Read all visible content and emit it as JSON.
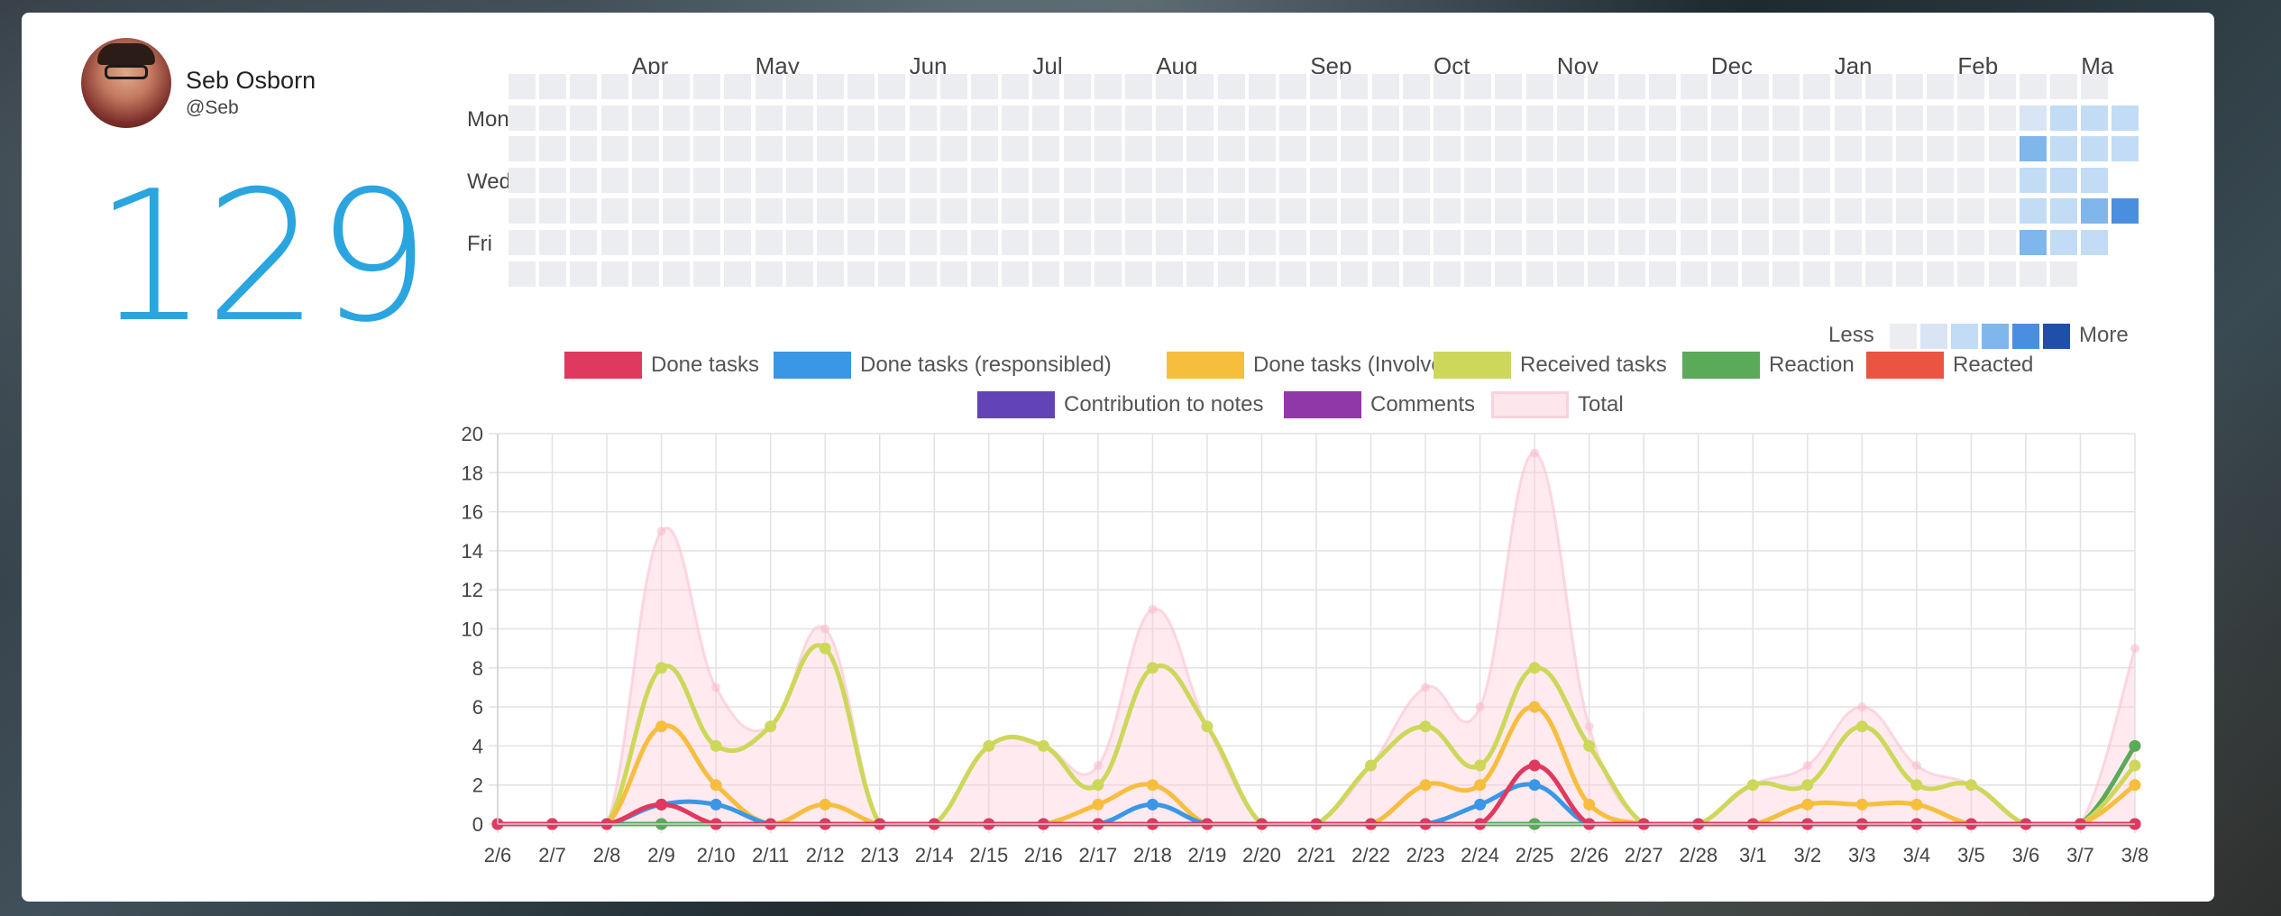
{
  "profile": {
    "name": "Seb Osborn",
    "handle": "@Seb",
    "count": "129"
  },
  "heatmap": {
    "months": [
      "Apr",
      "May",
      "Jun",
      "Jul",
      "Aug",
      "Sep",
      "Oct",
      "Nov",
      "Dec",
      "Jan",
      "Feb",
      "Ma"
    ],
    "day_labels": [
      "Mon",
      "Wed",
      "Fri"
    ],
    "less_label": "Less",
    "more_label": "More",
    "colors": [
      "#ebedf0",
      "#d9e5f5",
      "#c2dcf5",
      "#7fb6ec",
      "#4a8ee0",
      "#1f4fa8"
    ]
  },
  "chart_data": {
    "type": "line",
    "x": [
      "2/6",
      "2/7",
      "2/8",
      "2/9",
      "2/10",
      "2/11",
      "2/12",
      "2/13",
      "2/14",
      "2/15",
      "2/16",
      "2/17",
      "2/18",
      "2/19",
      "2/20",
      "2/21",
      "2/22",
      "2/23",
      "2/24",
      "2/25",
      "2/26",
      "2/27",
      "2/28",
      "3/1",
      "3/2",
      "3/3",
      "3/4",
      "3/5",
      "3/6",
      "3/7",
      "3/8"
    ],
    "ylim": [
      0,
      20
    ],
    "yticks": [
      0,
      2,
      4,
      6,
      8,
      10,
      12,
      14,
      16,
      18,
      20
    ],
    "grid": true,
    "legend_position": "top",
    "series": [
      {
        "name": "Done tasks",
        "color": "#e0395f",
        "values": [
          0,
          0,
          0,
          1,
          0,
          0,
          0,
          0,
          0,
          0,
          0,
          0,
          0,
          0,
          0,
          0,
          0,
          0,
          0,
          3,
          0,
          0,
          0,
          0,
          0,
          0,
          0,
          0,
          0,
          0,
          0
        ]
      },
      {
        "name": "Done tasks (responsibled)",
        "color": "#3a97e6",
        "values": [
          0,
          0,
          0,
          1,
          1,
          0,
          0,
          0,
          0,
          0,
          0,
          0,
          1,
          0,
          0,
          0,
          0,
          0,
          1,
          2,
          0,
          0,
          0,
          0,
          0,
          0,
          0,
          0,
          0,
          0,
          0
        ]
      },
      {
        "name": "Done tasks (Involved)",
        "color": "#f7be3e",
        "values": [
          0,
          0,
          0,
          5,
          2,
          0,
          1,
          0,
          0,
          0,
          0,
          1,
          2,
          0,
          0,
          0,
          0,
          2,
          2,
          6,
          1,
          0,
          0,
          0,
          1,
          1,
          1,
          0,
          0,
          0,
          2
        ]
      },
      {
        "name": "Received tasks",
        "color": "#cdd85a",
        "values": [
          0,
          0,
          0,
          8,
          4,
          5,
          9,
          0,
          0,
          4,
          4,
          2,
          8,
          5,
          0,
          0,
          3,
          5,
          3,
          8,
          4,
          0,
          0,
          2,
          2,
          5,
          2,
          2,
          0,
          0,
          3
        ]
      },
      {
        "name": "Reaction",
        "color": "#5aaa59",
        "values": [
          0,
          0,
          0,
          0,
          0,
          0,
          0,
          0,
          0,
          0,
          0,
          0,
          0,
          0,
          0,
          0,
          0,
          0,
          0,
          0,
          0,
          0,
          0,
          0,
          0,
          0,
          0,
          0,
          0,
          0,
          4
        ]
      },
      {
        "name": "Reacted",
        "color": "#ea5440",
        "values": [
          0,
          0,
          0,
          0,
          0,
          0,
          0,
          0,
          0,
          0,
          0,
          0,
          0,
          0,
          0,
          0,
          0,
          0,
          0,
          0,
          0,
          0,
          0,
          0,
          0,
          0,
          0,
          0,
          0,
          0,
          0
        ]
      },
      {
        "name": "Contribution to notes",
        "color": "#6244b8",
        "values": [
          0,
          0,
          0,
          0,
          0,
          0,
          0,
          0,
          0,
          0,
          0,
          0,
          0,
          0,
          0,
          0,
          0,
          0,
          0,
          0,
          0,
          0,
          0,
          0,
          0,
          0,
          0,
          0,
          0,
          0,
          0
        ]
      },
      {
        "name": "Comments",
        "color": "#9138a8",
        "values": [
          0,
          0,
          0,
          0,
          0,
          0,
          0,
          0,
          0,
          0,
          0,
          0,
          0,
          0,
          0,
          0,
          0,
          0,
          0,
          0,
          0,
          0,
          0,
          0,
          0,
          0,
          0,
          0,
          0,
          0,
          0
        ]
      },
      {
        "name": "Total",
        "color": "#f9c7d2",
        "area": true,
        "values": [
          0,
          0,
          0,
          15,
          7,
          5,
          10,
          0,
          0,
          4,
          4,
          3,
          11,
          5,
          0,
          0,
          3,
          7,
          6,
          19,
          5,
          0,
          0,
          2,
          3,
          6,
          3,
          2,
          0,
          0,
          9
        ]
      }
    ]
  }
}
